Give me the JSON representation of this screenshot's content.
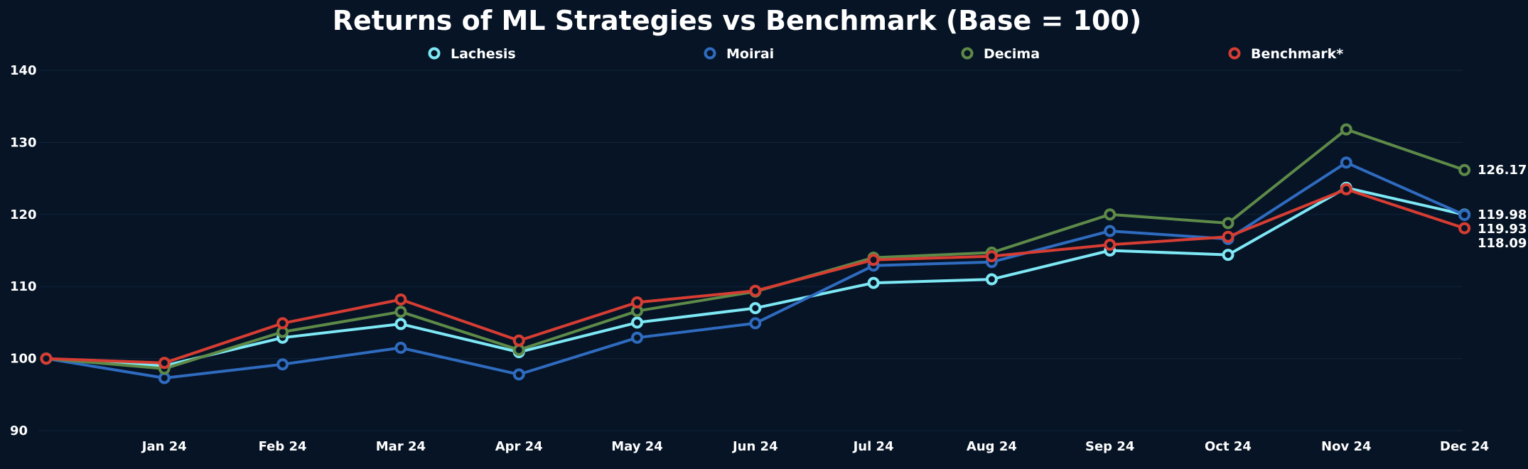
{
  "chart_data": {
    "type": "line",
    "title": "Returns of ML Strategies vs Benchmark (Base = 100)",
    "xlabel": "",
    "ylabel": "",
    "categories": [
      "",
      "Jan 24",
      "Feb 24",
      "Mar 24",
      "Apr 24",
      "May 24",
      "Jun 24",
      "Jul 24",
      "Aug 24",
      "Sep 24",
      "Oct 24",
      "Nov 24",
      "Dec 24"
    ],
    "ylim": [
      90,
      140
    ],
    "yticks": [
      90,
      100,
      110,
      120,
      130,
      140
    ],
    "grid": true,
    "legend_position": "top",
    "series": [
      {
        "name": "Lachesis",
        "color": "#7ee8f5",
        "values": [
          100,
          99.0,
          102.9,
          104.8,
          100.9,
          105.0,
          107.0,
          110.5,
          111.0,
          115.0,
          114.4,
          123.7,
          119.98
        ]
      },
      {
        "name": "Moirai",
        "color": "#2f6bbf",
        "values": [
          100,
          97.3,
          99.2,
          101.5,
          97.8,
          102.9,
          104.9,
          112.9,
          113.4,
          117.7,
          116.6,
          127.2,
          119.93
        ]
      },
      {
        "name": "Decima",
        "color": "#5e8a48",
        "values": [
          100,
          98.6,
          103.7,
          106.5,
          101.2,
          106.6,
          109.3,
          114.0,
          114.7,
          120.0,
          118.8,
          131.8,
          126.17
        ]
      },
      {
        "name": "Benchmark*",
        "color": "#d73d32",
        "values": [
          100,
          99.4,
          104.9,
          108.2,
          102.5,
          107.8,
          109.4,
          113.7,
          114.2,
          115.8,
          116.9,
          123.5,
          118.09
        ]
      }
    ],
    "end_labels": [
      "126.17",
      "119.98",
      "119.93",
      "118.09"
    ]
  }
}
